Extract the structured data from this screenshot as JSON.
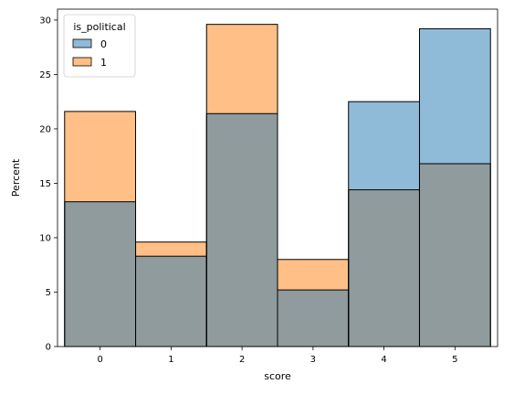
{
  "chart_data": {
    "type": "bar",
    "style": "overlaid histogram",
    "xlabel": "score",
    "ylabel": "Percent",
    "categories": [
      "0",
      "1",
      "2",
      "3",
      "4",
      "5"
    ],
    "xlim": [
      -0.6,
      5.6
    ],
    "ylim": [
      0,
      31
    ],
    "yticks": [
      0,
      5,
      10,
      15,
      20,
      25,
      30
    ],
    "grid": false,
    "legend": {
      "title": "is_political",
      "placement": "top-left",
      "entries": [
        {
          "label": "0",
          "color": "#1f77b4"
        },
        {
          "label": "1",
          "color": "#ff7f0e"
        }
      ]
    },
    "series": [
      {
        "name": "0",
        "color": "#1f77b4",
        "values": [
          13.3,
          8.3,
          21.4,
          5.2,
          22.5,
          29.2
        ]
      },
      {
        "name": "1",
        "color": "#ff7f0e",
        "values": [
          21.6,
          9.6,
          29.6,
          8.0,
          14.4,
          16.8
        ]
      }
    ]
  }
}
